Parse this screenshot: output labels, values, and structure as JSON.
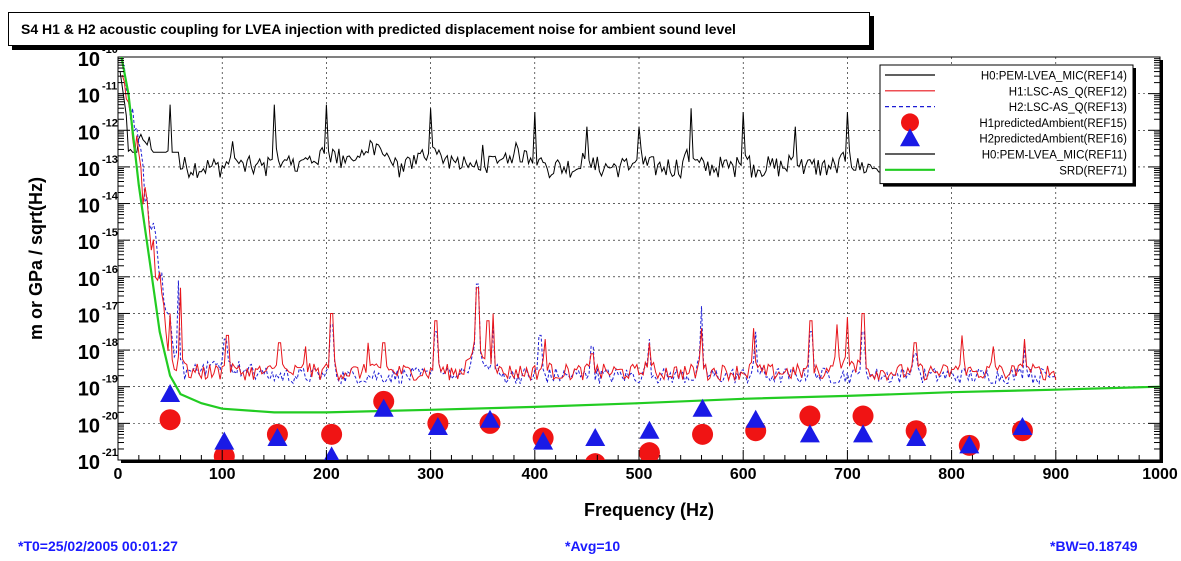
{
  "colors": {
    "mic": "#000000",
    "h1": "#e8151b",
    "h2": "#1c1cd4",
    "h1pred": "#f01414",
    "h2pred": "#1a1ae6",
    "srd": "#22cc22",
    "footer": "#1a1aff"
  },
  "footer": {
    "t0": "*T0=25/02/2005 00:01:27",
    "avg": "*Avg=10",
    "bw": "*BW=0.18749"
  },
  "chart_data": {
    "type": "line",
    "title": "S4 H1 & H2 acoustic coupling for LVEA injection with predicted displacement noise for ambient sound level",
    "xlabel": "Frequency (Hz)",
    "ylabel": "m or GPa / sqrt(Hz)",
    "xlim": [
      0,
      1000
    ],
    "ylim_log10": [
      -21,
      -10
    ],
    "yscale": "log",
    "grid": true,
    "legend_position": "top-right",
    "x_ticks": [
      "0",
      "100",
      "200",
      "300",
      "400",
      "500",
      "600",
      "700",
      "800",
      "900",
      "1000"
    ],
    "y_ticks": [
      {
        "base": "10",
        "exp": "-10"
      },
      {
        "base": "10",
        "exp": "-11"
      },
      {
        "base": "10",
        "exp": "-12"
      },
      {
        "base": "10",
        "exp": "-13"
      },
      {
        "base": "10",
        "exp": "-14"
      },
      {
        "base": "10",
        "exp": "-15"
      },
      {
        "base": "10",
        "exp": "-16"
      },
      {
        "base": "10",
        "exp": "-17"
      },
      {
        "base": "10",
        "exp": "-18"
      },
      {
        "base": "10",
        "exp": "-19"
      },
      {
        "base": "10",
        "exp": "-20"
      },
      {
        "base": "10",
        "exp": "-21"
      }
    ],
    "series": [
      {
        "name": "H0:PEM-LVEA_MIC(REF14)",
        "kind": "line",
        "color": "#000000",
        "baseline_log10": -13.0,
        "peaks": [
          [
            50,
            -11.3
          ],
          [
            110,
            -12.3
          ],
          [
            150,
            -11.3
          ],
          [
            200,
            -11.3
          ],
          [
            250,
            -12.4
          ],
          [
            300,
            -11.4
          ],
          [
            350,
            -12.4
          ],
          [
            400,
            -11.5
          ],
          [
            450,
            -11.9
          ],
          [
            500,
            -11.9
          ],
          [
            550,
            -11.4
          ],
          [
            600,
            -11.5
          ],
          [
            650,
            -11.9
          ],
          [
            700,
            -11.5
          ],
          [
            750,
            -12.0
          ],
          [
            800,
            -12.0
          ],
          [
            850,
            -11.9
          ]
        ]
      },
      {
        "name": "H1:LSC-AS_Q(REF12)",
        "kind": "line",
        "color": "#e8151b",
        "baseline_log10": -18.6,
        "peaks": [
          [
            50,
            -17.0
          ],
          [
            60,
            -16.3
          ],
          [
            105,
            -17.6
          ],
          [
            155,
            -17.8
          ],
          [
            180,
            -17.9
          ],
          [
            205,
            -17.0
          ],
          [
            240,
            -17.8
          ],
          [
            255,
            -17.8
          ],
          [
            305,
            -17.2
          ],
          [
            345,
            -16.3
          ],
          [
            355,
            -17.2
          ],
          [
            360,
            -17.0
          ],
          [
            410,
            -17.7
          ],
          [
            455,
            -18.1
          ],
          [
            510,
            -17.8
          ],
          [
            560,
            -17.4
          ],
          [
            610,
            -17.4
          ],
          [
            665,
            -17.2
          ],
          [
            690,
            -17.3
          ],
          [
            700,
            -17.1
          ],
          [
            715,
            -17.0
          ],
          [
            765,
            -17.8
          ],
          [
            810,
            -17.6
          ],
          [
            840,
            -17.9
          ],
          [
            870,
            -17.7
          ]
        ]
      },
      {
        "name": "H2:LSC-AS_Q(REF13)",
        "kind": "dashed",
        "color": "#1c1cd4",
        "baseline_log10": -18.7,
        "peaks": [
          [
            50,
            -17.1
          ],
          [
            58,
            -16.1
          ],
          [
            103,
            -17.7
          ],
          [
            205,
            -17.3
          ],
          [
            305,
            -17.5
          ],
          [
            345,
            -16.2
          ],
          [
            360,
            -17.3
          ],
          [
            405,
            -17.6
          ],
          [
            455,
            -17.9
          ],
          [
            510,
            -17.7
          ],
          [
            560,
            -16.8
          ],
          [
            612,
            -17.5
          ],
          [
            665,
            -17.5
          ],
          [
            715,
            -17.5
          ],
          [
            765,
            -18.1
          ],
          [
            870,
            -17.9
          ]
        ]
      },
      {
        "name": "H1predictedAmbient(REF15)",
        "kind": "circle",
        "color": "#f01414",
        "points": [
          [
            50,
            -19.9
          ],
          [
            102,
            -20.9
          ],
          [
            153,
            -20.3
          ],
          [
            205,
            -20.3
          ],
          [
            255,
            -19.4
          ],
          [
            307,
            -20.0
          ],
          [
            357,
            -20.0
          ],
          [
            408,
            -20.4
          ],
          [
            458,
            -21.1
          ],
          [
            510,
            -20.8
          ],
          [
            561,
            -20.3
          ],
          [
            612,
            -20.2
          ],
          [
            664,
            -19.8
          ],
          [
            715,
            -19.8
          ],
          [
            766,
            -20.2
          ],
          [
            817,
            -20.6
          ],
          [
            868,
            -20.2
          ]
        ]
      },
      {
        "name": "H2predictedAmbient(REF16)",
        "kind": "triangle",
        "color": "#1a1ae6",
        "points": [
          [
            50,
            -19.2
          ],
          [
            102,
            -20.5
          ],
          [
            153,
            -20.4
          ],
          [
            205,
            -20.9
          ],
          [
            255,
            -19.6
          ],
          [
            307,
            -20.1
          ],
          [
            357,
            -19.9
          ],
          [
            408,
            -20.5
          ],
          [
            458,
            -20.4
          ],
          [
            510,
            -20.2
          ],
          [
            561,
            -19.6
          ],
          [
            612,
            -19.9
          ],
          [
            664,
            -20.3
          ],
          [
            715,
            -20.3
          ],
          [
            766,
            -20.4
          ],
          [
            817,
            -20.6
          ],
          [
            868,
            -20.1
          ]
        ]
      },
      {
        "name": "H0:PEM-LVEA_MIC(REF11)",
        "kind": "line",
        "color": "#000000"
      },
      {
        "name": "SRD(REF71)",
        "kind": "line",
        "color": "#22cc22",
        "points": [
          [
            0,
            -9.5
          ],
          [
            10,
            -11.0
          ],
          [
            20,
            -13.5
          ],
          [
            30,
            -15.5
          ],
          [
            40,
            -17.5
          ],
          [
            50,
            -18.7
          ],
          [
            60,
            -19.2
          ],
          [
            80,
            -19.45
          ],
          [
            100,
            -19.6
          ],
          [
            150,
            -19.7
          ],
          [
            200,
            -19.7
          ],
          [
            300,
            -19.63
          ],
          [
            400,
            -19.55
          ],
          [
            500,
            -19.45
          ],
          [
            600,
            -19.33
          ],
          [
            700,
            -19.25
          ],
          [
            800,
            -19.15
          ],
          [
            900,
            -19.08
          ],
          [
            1000,
            -19.0
          ]
        ]
      }
    ]
  }
}
